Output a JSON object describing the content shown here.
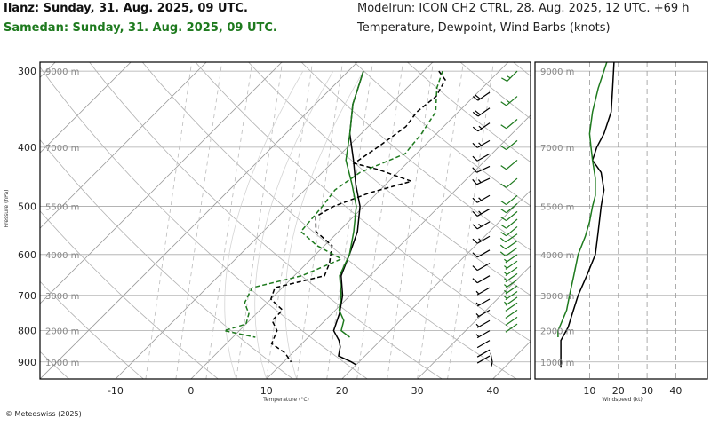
{
  "header": {
    "station_1": "Ilanz: Sunday, 31. Aug. 2025, 09 UTC.",
    "station_2": "Samedan: Sunday, 31. Aug. 2025, 09 UTC.",
    "model_run": "Modelrun: ICON CH2 CTRL, 28. Aug. 2025, 12 UTC. +69 h",
    "plot_desc": "Temperature, Dewpoint, Wind Barbs (knots)"
  },
  "footer": {
    "credit": "© Meteoswiss (2025)"
  },
  "colors": {
    "station_1": "#000000",
    "station_2": "#1e7a1e",
    "grid": "#bbbbbb",
    "isotherm": "#999999"
  },
  "chart_data": [
    {
      "type": "line",
      "subtype": "skew-t",
      "xlabel": "Temperature (°C)",
      "ylabel": "Pressure (hPa)",
      "x_ticks": [
        -10,
        0,
        10,
        20,
        30,
        40
      ],
      "x_tick_labels": [
        "-10",
        "0",
        "10",
        "20",
        "30",
        "40"
      ],
      "pressure_ticks": [
        300,
        400,
        500,
        600,
        700,
        800,
        900
      ],
      "pressure_tick_labels": [
        "300",
        "400",
        "500",
        "600",
        "700",
        "800",
        "900"
      ],
      "altitude_marks": [
        {
          "label": "9000 m",
          "p": 300
        },
        {
          "label": "7000 m",
          "p": 400
        },
        {
          "label": "5500 m",
          "p": 500
        },
        {
          "label": "4000 m",
          "p": 600
        },
        {
          "label": "3000 m",
          "p": 700
        },
        {
          "label": "2000 m",
          "p": 800
        },
        {
          "label": "1000 m",
          "p": 900
        }
      ],
      "ylim": [
        290,
        960
      ],
      "xlim": [
        -20,
        45
      ],
      "skew_ticks": [
        -8,
        -6,
        -4,
        -2,
        0,
        2,
        4,
        6,
        8,
        10,
        12,
        14,
        16,
        18,
        20,
        22,
        24,
        26
      ],
      "dry_adiabats_theta": [
        250,
        260,
        270,
        280,
        290,
        300,
        310,
        320,
        330,
        340,
        350,
        360,
        370,
        380,
        390,
        400,
        410,
        420,
        430,
        440
      ],
      "mixing_ratio_xs": [
        -6,
        -2,
        2,
        6,
        10,
        14,
        18,
        22,
        26,
        30,
        34
      ],
      "series": [
        {
          "role": "temperature",
          "station": "Ilanz",
          "points": [
            [
              300,
              -18
            ],
            [
              340,
              -15
            ],
            [
              380,
              -11.5
            ],
            [
              420,
              -7.5
            ],
            [
              460,
              -4
            ],
            [
              500,
              -0.5
            ],
            [
              550,
              2.5
            ],
            [
              600,
              4.5
            ],
            [
              650,
              6.2
            ],
            [
              700,
              9
            ],
            [
              750,
              11
            ],
            [
              800,
              12.5
            ],
            [
              830,
              14.5
            ],
            [
              850,
              15.5
            ],
            [
              880,
              16.5
            ],
            [
              900,
              19
            ],
            [
              910,
              20
            ]
          ]
        },
        {
          "role": "dewpoint",
          "station": "Ilanz",
          "points": [
            [
              300,
              -8
            ],
            [
              310,
              -6
            ],
            [
              330,
              -5
            ],
            [
              350,
              -5.5
            ],
            [
              370,
              -5
            ],
            [
              400,
              -6
            ],
            [
              425,
              -7
            ],
            [
              435,
              -3
            ],
            [
              455,
              3
            ],
            [
              475,
              -1
            ],
            [
              500,
              -4
            ],
            [
              520,
              -5
            ],
            [
              550,
              -3
            ],
            [
              580,
              1
            ],
            [
              620,
              3
            ],
            [
              650,
              4
            ],
            [
              680,
              -1
            ],
            [
              710,
              0
            ],
            [
              740,
              3
            ],
            [
              770,
              3
            ],
            [
              800,
              5
            ],
            [
              840,
              6
            ],
            [
              870,
              9
            ],
            [
              900,
              11
            ]
          ]
        },
        {
          "role": "temperature",
          "station": "Samedan",
          "points": [
            [
              300,
              -18
            ],
            [
              340,
              -15
            ],
            [
              380,
              -11.5
            ],
            [
              420,
              -8.5
            ],
            [
              460,
              -4.5
            ],
            [
              500,
              -1
            ],
            [
              550,
              2
            ],
            [
              600,
              4.5
            ],
            [
              650,
              6
            ],
            [
              700,
              8.8
            ],
            [
              740,
              10.5
            ],
            [
              770,
              12.5
            ],
            [
              800,
              13.5
            ],
            [
              820,
              15.5
            ]
          ]
        },
        {
          "role": "dewpoint",
          "station": "Samedan",
          "points": [
            [
              300,
              -7.5
            ],
            [
              320,
              -6
            ],
            [
              350,
              -3
            ],
            [
              380,
              -2
            ],
            [
              410,
              -1.5
            ],
            [
              440,
              -5
            ],
            [
              470,
              -6
            ],
            [
              500,
              -5.5
            ],
            [
              550,
              -5
            ],
            [
              580,
              -1
            ],
            [
              610,
              4
            ],
            [
              650,
              1
            ],
            [
              680,
              -4
            ],
            [
              720,
              -3
            ],
            [
              750,
              -1
            ],
            [
              780,
              0
            ],
            [
              800,
              -2
            ],
            [
              820,
              3
            ]
          ]
        }
      ]
    },
    {
      "type": "line",
      "subtype": "wind-profile",
      "xlabel": "Windspeed (kt)",
      "x_ticks": [
        10,
        20,
        30,
        40
      ],
      "x_tick_labels": [
        "10",
        "20",
        "30",
        "40"
      ],
      "xlim": [
        -9,
        51
      ],
      "ylim": [
        290,
        960
      ],
      "altitude_marks": [
        {
          "label": "9000 m",
          "p": 300
        },
        {
          "label": "7000 m",
          "p": 400
        },
        {
          "label": "5500 m",
          "p": 500
        },
        {
          "label": "4000 m",
          "p": 600
        },
        {
          "label": "3000 m",
          "p": 700
        },
        {
          "label": "2000 m",
          "p": 800
        },
        {
          "label": "1000 m",
          "p": 900
        }
      ],
      "series": [
        {
          "station": "Ilanz",
          "points": [
            [
              290,
              18.5
            ],
            [
              320,
              18
            ],
            [
              350,
              17.5
            ],
            [
              380,
              15
            ],
            [
              400,
              12.5
            ],
            [
              420,
              11
            ],
            [
              440,
              14
            ],
            [
              470,
              15
            ],
            [
              500,
              14
            ],
            [
              550,
              13
            ],
            [
              600,
              12
            ],
            [
              650,
              9
            ],
            [
              700,
              6
            ],
            [
              750,
              4
            ],
            [
              790,
              2.5
            ],
            [
              830,
              0
            ],
            [
              860,
              0
            ],
            [
              900,
              0
            ],
            [
              920,
              0
            ]
          ]
        },
        {
          "station": "Samedan",
          "points": [
            [
              290,
              16
            ],
            [
              320,
              13
            ],
            [
              350,
              11
            ],
            [
              380,
              10
            ],
            [
              400,
              10.5
            ],
            [
              420,
              11
            ],
            [
              450,
              12
            ],
            [
              480,
              12
            ],
            [
              500,
              11
            ],
            [
              530,
              10
            ],
            [
              560,
              8.5
            ],
            [
              600,
              6
            ],
            [
              650,
              4.5
            ],
            [
              700,
              3
            ],
            [
              740,
              2
            ],
            [
              780,
              0
            ],
            [
              800,
              -1
            ],
            [
              820,
              -1
            ]
          ]
        }
      ]
    }
  ],
  "wind_barbs": [
    {
      "station": "Ilanz",
      "barbs": [
        [
          325,
          18,
          235
        ],
        [
          345,
          18,
          235
        ],
        [
          365,
          17,
          235
        ],
        [
          390,
          15,
          240
        ],
        [
          410,
          12,
          240
        ],
        [
          430,
          11,
          245
        ],
        [
          450,
          13,
          245
        ],
        [
          480,
          14,
          240
        ],
        [
          505,
          14,
          240
        ],
        [
          530,
          13,
          240
        ],
        [
          560,
          13,
          240
        ],
        [
          590,
          12,
          240
        ],
        [
          620,
          10,
          240
        ],
        [
          650,
          9,
          240
        ],
        [
          680,
          7,
          240
        ],
        [
          710,
          6,
          240
        ],
        [
          740,
          5,
          240
        ],
        [
          770,
          4,
          240
        ],
        [
          800,
          3,
          240
        ],
        [
          830,
          2,
          240
        ],
        [
          860,
          1,
          240
        ],
        [
          880,
          1,
          240
        ]
      ]
    },
    {
      "station": "Samedan",
      "barbs": [
        [
          300,
          16,
          225
        ],
        [
          330,
          13,
          230
        ],
        [
          360,
          11,
          230
        ],
        [
          390,
          10,
          230
        ],
        [
          420,
          11,
          230
        ],
        [
          450,
          12,
          230
        ],
        [
          480,
          12,
          230
        ],
        [
          495,
          11,
          230
        ],
        [
          510,
          11,
          230
        ],
        [
          525,
          10,
          230
        ],
        [
          540,
          10,
          230
        ],
        [
          555,
          9,
          235
        ],
        [
          570,
          9,
          235
        ],
        [
          585,
          8,
          235
        ],
        [
          600,
          6,
          235
        ],
        [
          615,
          6,
          235
        ],
        [
          630,
          5,
          235
        ],
        [
          645,
          4,
          235
        ],
        [
          660,
          4,
          235
        ],
        [
          675,
          3,
          235
        ],
        [
          690,
          3,
          235
        ],
        [
          705,
          3,
          235
        ],
        [
          720,
          2,
          235
        ],
        [
          740,
          2,
          235
        ],
        [
          760,
          1,
          235
        ],
        [
          780,
          1,
          235
        ]
      ]
    }
  ]
}
